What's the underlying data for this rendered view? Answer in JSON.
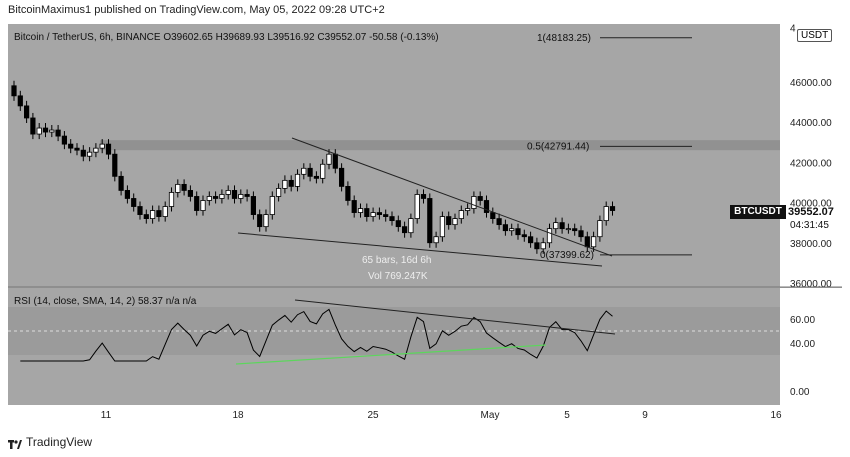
{
  "header": {
    "caption": "BitcoinMaximus1 published on TradingView.com, May 05, 2022 09:28 UTC+2"
  },
  "legend": {
    "symbol": "Bitcoin / TetherUS, 6h, BINANCE",
    "open_label": "O",
    "open": "39602.65",
    "high_label": "H",
    "high": "39689.93",
    "low_label": "L",
    "low": "39516.92",
    "close_label": "C",
    "close": "39552.07",
    "change": "-50.58 (-0.13%)"
  },
  "badges": {
    "currency": "USDT",
    "ticker": "BTCUSDT",
    "current_price": "39552.07",
    "countdown": "04:31:45"
  },
  "rsi_legend": {
    "label": "RSI (14, close, SMA, 14, 2)",
    "value": "58.37",
    "na1": "n/a",
    "na2": "n/a"
  },
  "footer": {
    "brand": "TradingView"
  },
  "chart_data": {
    "type": "candlestick",
    "timeframe": "6h",
    "price_axis": {
      "ticks": [
        "36000.00",
        "38000.00",
        "40000.00",
        "42000.00",
        "44000.00",
        "46000.00",
        "4"
      ],
      "ylim": [
        35900,
        48800
      ]
    },
    "time_axis": {
      "ticks": [
        "11",
        "18",
        "25",
        "May",
        "5",
        "9",
        "16"
      ]
    },
    "fib_levels": [
      {
        "label": "1(48183.25)",
        "price": 48183.25
      },
      {
        "label": "0.5(42791.44)",
        "price": 42791.44
      },
      {
        "label": "0(37399.62)",
        "price": 37399.62
      }
    ],
    "resistance_zone": [
      42600,
      43100
    ],
    "range_info": {
      "bars": "65 bars, 16d 6h",
      "volume": "Vol 769.247K"
    },
    "candles_close": [
      45300,
      44800,
      44200,
      43400,
      43700,
      43500,
      43600,
      43300,
      42900,
      42700,
      42600,
      42300,
      42500,
      42700,
      42900,
      42400,
      41300,
      40600,
      40200,
      39800,
      39400,
      39200,
      39600,
      39300,
      39800,
      40500,
      40900,
      40600,
      40300,
      39600,
      40100,
      40300,
      40200,
      40400,
      40600,
      40200,
      40400,
      40300,
      39400,
      38800,
      39400,
      40300,
      40700,
      41100,
      40800,
      41400,
      41700,
      41300,
      41200,
      41900,
      42400,
      41700,
      40800,
      40100,
      39500,
      39700,
      39300,
      39500,
      39400,
      39300,
      39100,
      38800,
      38500,
      39200,
      40400,
      40200,
      38000,
      38300,
      39300,
      38900,
      39200,
      39600,
      39700,
      40300,
      40100,
      39500,
      39200,
      38900,
      38600,
      38700,
      38400,
      38300,
      38000,
      37700,
      38000,
      38700,
      39000,
      38700,
      38700,
      38600,
      38300,
      37800,
      38300,
      39100,
      39800,
      39600
    ],
    "rsi": {
      "ticks": [
        "60.00",
        "40.00",
        "0.00"
      ],
      "ylim": [
        -5,
        75
      ],
      "band": [
        30,
        70
      ],
      "last": 58.37
    }
  }
}
